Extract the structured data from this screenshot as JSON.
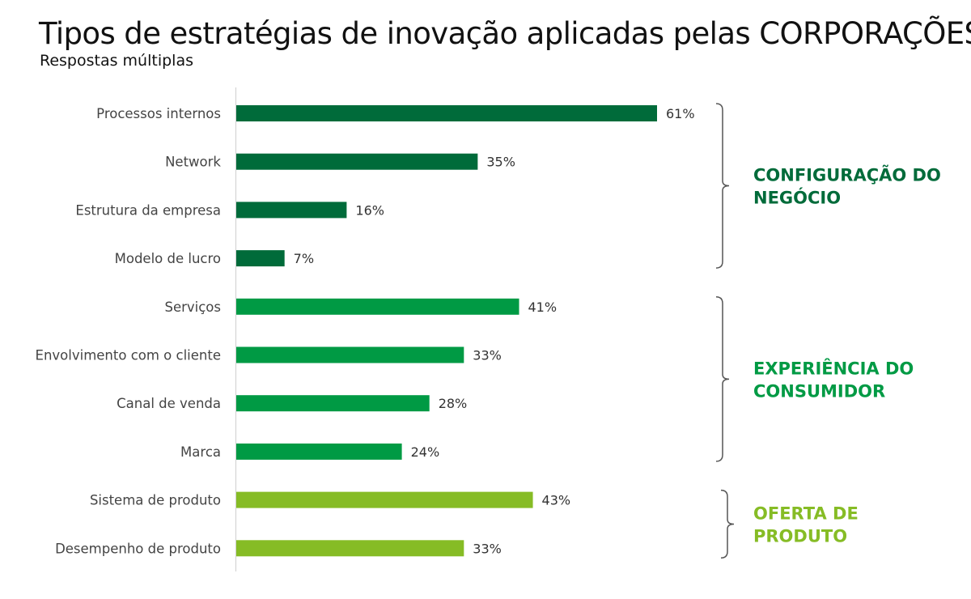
{
  "chart_data": {
    "type": "bar",
    "orientation": "horizontal",
    "title": "Tipos de estratégias de inovação aplicadas pelas CORPORAÇÕES",
    "subtitle": "Respostas múltiplas",
    "value_suffix": "%",
    "xlim": [
      0,
      61
    ],
    "grid": false,
    "categories": [
      "Processos internos",
      "Network",
      "Estrutura da empresa",
      "Modelo de lucro",
      "Serviços",
      "Envolvimento com o cliente",
      "Canal de venda",
      "Marca",
      "Sistema de produto",
      "Desempenho de produto"
    ],
    "values": [
      61,
      35,
      16,
      7,
      41,
      33,
      28,
      24,
      43,
      33
    ],
    "groups": [
      {
        "label_lines": [
          "CONFIGURAÇÃO DO",
          "NEGÓCIO"
        ],
        "start": 0,
        "end": 3,
        "color": "#006b3a"
      },
      {
        "label_lines": [
          "EXPERIÊNCIA DO",
          "CONSUMIDOR"
        ],
        "start": 4,
        "end": 7,
        "color": "#009a44"
      },
      {
        "label_lines": [
          "OFERTA DE",
          "PRODUTO"
        ],
        "start": 8,
        "end": 9,
        "color": "#86bc25"
      }
    ]
  }
}
